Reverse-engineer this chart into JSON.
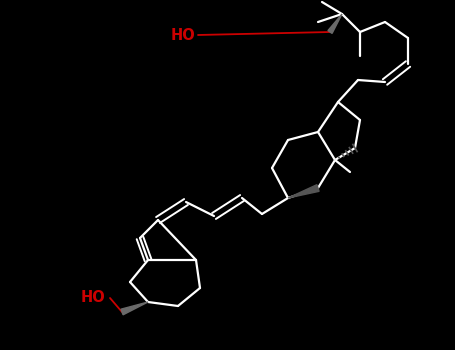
{
  "bg_color": "#000000",
  "bond_color": "#ffffff",
  "ho_color": "#cc0000",
  "bond_lw": 1.6,
  "fig_width": 4.55,
  "fig_height": 3.5,
  "dpi": 100
}
